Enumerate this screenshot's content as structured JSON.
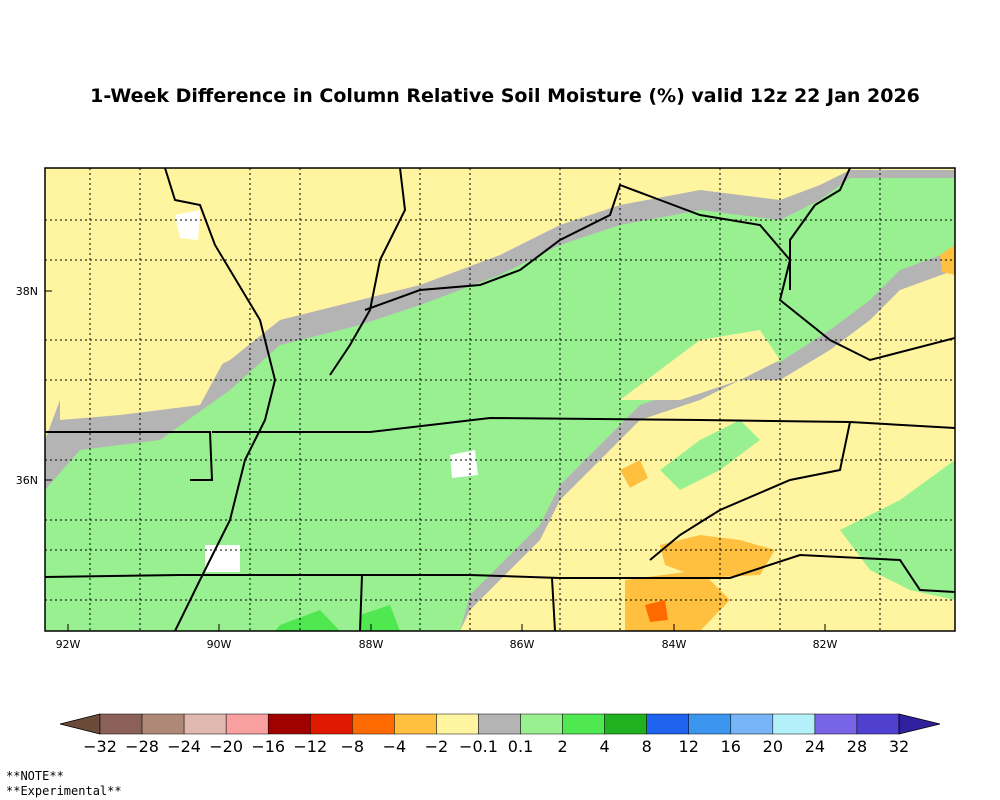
{
  "title": "1-Week Difference in Column Relative Soil Moisture (%) valid 12z 22 Jan 2026",
  "map": {
    "lat_labels": [
      "38N",
      "36N"
    ],
    "lon_labels": [
      "92W",
      "90W",
      "88W",
      "86W",
      "84W",
      "82W"
    ]
  },
  "colorbar": {
    "labels": [
      "−32",
      "−28",
      "−24",
      "−20",
      "−16",
      "−12",
      "−8",
      "−4",
      "−2",
      "−0.1",
      "0.1",
      "2",
      "4",
      "8",
      "12",
      "16",
      "20",
      "24",
      "28",
      "32"
    ],
    "colors": [
      "#6b4a3a",
      "#8b6058",
      "#b08878",
      "#e0b8b0",
      "#f8a0a0",
      "#a00000",
      "#e01a00",
      "#ff6a00",
      "#ffc040",
      "#fff5a0",
      "#b4b4b4",
      "#98f090",
      "#50e850",
      "#20b020",
      "#1e64f0",
      "#3c96f0",
      "#78b4f8",
      "#b4f0fa",
      "#7864e6",
      "#5040d0",
      "#3020a0"
    ]
  },
  "notes": [
    "**NOTE**",
    "**Experimental**"
  ]
}
